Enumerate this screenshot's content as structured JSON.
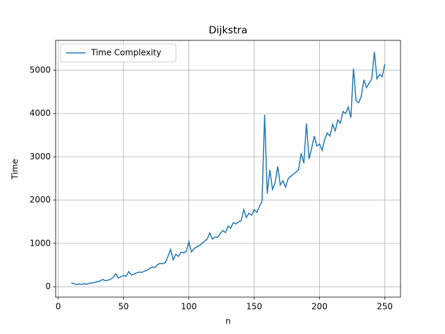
{
  "chart_data": {
    "type": "line",
    "title": "Dijkstra",
    "xlabel": "n",
    "ylabel": "Time",
    "x": [
      10,
      12,
      14,
      16,
      18,
      20,
      22,
      24,
      26,
      28,
      30,
      32,
      34,
      36,
      38,
      40,
      42,
      44,
      46,
      48,
      50,
      52,
      54,
      56,
      58,
      60,
      62,
      64,
      66,
      68,
      70,
      72,
      74,
      76,
      78,
      80,
      82,
      84,
      86,
      88,
      90,
      92,
      94,
      96,
      98,
      100,
      102,
      104,
      106,
      108,
      110,
      112,
      114,
      116,
      118,
      120,
      122,
      124,
      126,
      128,
      130,
      132,
      134,
      136,
      138,
      140,
      142,
      144,
      146,
      148,
      150,
      152,
      154,
      156,
      158,
      160,
      162,
      164,
      166,
      168,
      170,
      172,
      174,
      176,
      178,
      180,
      182,
      184,
      186,
      188,
      190,
      192,
      194,
      196,
      198,
      200,
      202,
      204,
      206,
      208,
      210,
      212,
      214,
      216,
      218,
      220,
      222,
      224,
      226,
      228,
      230,
      232,
      234,
      236,
      238,
      240,
      242,
      244,
      246,
      248,
      250
    ],
    "series": [
      {
        "name": "Time Complexity",
        "color": "#1f77b4",
        "values": [
          90,
          70,
          50,
          65,
          55,
          70,
          60,
          80,
          90,
          100,
          120,
          130,
          170,
          140,
          150,
          170,
          210,
          300,
          200,
          230,
          260,
          240,
          350,
          270,
          290,
          320,
          340,
          330,
          360,
          380,
          420,
          460,
          440,
          510,
          540,
          530,
          560,
          700,
          860,
          620,
          750,
          700,
          800,
          780,
          820,
          1040,
          800,
          880,
          920,
          950,
          1000,
          1050,
          1100,
          1240,
          1100,
          1150,
          1140,
          1230,
          1300,
          1250,
          1400,
          1350,
          1480,
          1450,
          1500,
          1520,
          1780,
          1600,
          1700,
          1650,
          1780,
          1720,
          1850,
          1980,
          3970,
          2150,
          2700,
          2250,
          2400,
          2780,
          2350,
          2450,
          2300,
          2500,
          2550,
          2600,
          2650,
          2700,
          3080,
          2850,
          3770,
          2950,
          3200,
          3480,
          3250,
          3300,
          3150,
          3400,
          3550,
          3480,
          3750,
          3600,
          3850,
          3780,
          4050,
          4000,
          4150,
          3900,
          5040,
          4300,
          4250,
          4400,
          4780,
          4600,
          4700,
          4800,
          5420,
          4800,
          4900,
          4850,
          5140
        ]
      }
    ],
    "xlim": [
      -2,
      262
    ],
    "ylim": [
      -240,
      5690
    ],
    "xticks": [
      0,
      50,
      100,
      150,
      200,
      250
    ],
    "yticks": [
      0,
      1000,
      2000,
      3000,
      4000,
      5000
    ],
    "grid": true,
    "legend": "upper left"
  }
}
